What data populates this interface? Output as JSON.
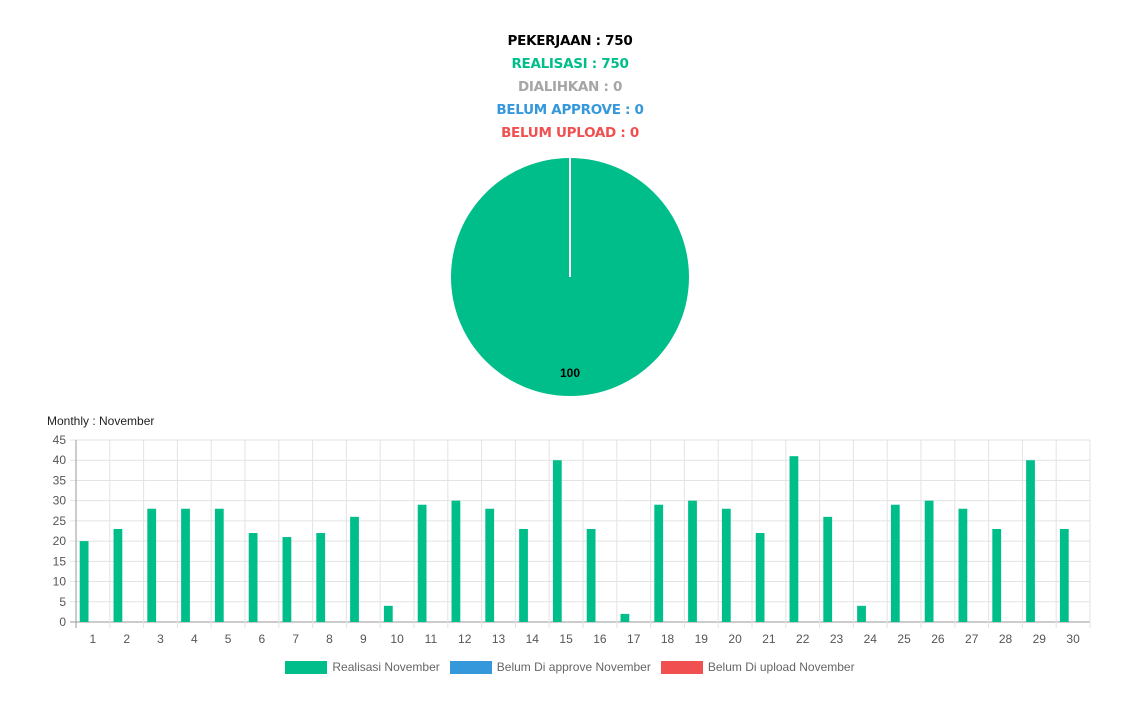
{
  "summary": {
    "pekerjaan": "PEKERJAAN : 750",
    "realisasi": "REALISASI : 750",
    "dialihkan": "DIALIHKAN : 0",
    "belum_approve": "BELUM APPROVE : 0",
    "belum_upload": "BELUM UPLOAD : 0"
  },
  "colors": {
    "pekerjaan": "#000000",
    "realisasi": "#00be8a",
    "dialihkan": "#a6a6a6",
    "belum_approve": "#3498db",
    "belum_upload": "#f05050"
  },
  "monthly_label": "Monthly : November",
  "chart_data": [
    {
      "type": "pie",
      "slices": [
        {
          "value": 100,
          "label": "100",
          "color": "#00be8a"
        }
      ]
    },
    {
      "type": "bar",
      "categories": [
        "1",
        "2",
        "3",
        "4",
        "5",
        "6",
        "7",
        "8",
        "9",
        "10",
        "11",
        "12",
        "13",
        "14",
        "15",
        "16",
        "17",
        "18",
        "19",
        "20",
        "21",
        "22",
        "23",
        "24",
        "25",
        "26",
        "27",
        "28",
        "29",
        "30"
      ],
      "series": [
        {
          "name": "Realisasi November",
          "color": "#00be8a",
          "values": [
            20,
            23,
            28,
            28,
            28,
            22,
            21,
            22,
            26,
            4,
            29,
            30,
            28,
            23,
            40,
            23,
            2,
            29,
            30,
            28,
            22,
            41,
            26,
            4,
            29,
            30,
            28,
            23,
            40,
            23
          ]
        },
        {
          "name": "Belum Di approve November",
          "color": "#3498db",
          "values": [
            0,
            0,
            0,
            0,
            0,
            0,
            0,
            0,
            0,
            0,
            0,
            0,
            0,
            0,
            0,
            0,
            0,
            0,
            0,
            0,
            0,
            0,
            0,
            0,
            0,
            0,
            0,
            0,
            0,
            0
          ]
        },
        {
          "name": "Belum Di upload November",
          "color": "#f05050",
          "values": [
            0,
            0,
            0,
            0,
            0,
            0,
            0,
            0,
            0,
            0,
            0,
            0,
            0,
            0,
            0,
            0,
            0,
            0,
            0,
            0,
            0,
            0,
            0,
            0,
            0,
            0,
            0,
            0,
            0,
            0
          ]
        }
      ],
      "yticks": [
        "0",
        "5",
        "10",
        "15",
        "20",
        "25",
        "30",
        "35",
        "40",
        "45"
      ],
      "ylim": [
        0,
        45
      ],
      "grid": true,
      "legend": "bottom"
    }
  ]
}
